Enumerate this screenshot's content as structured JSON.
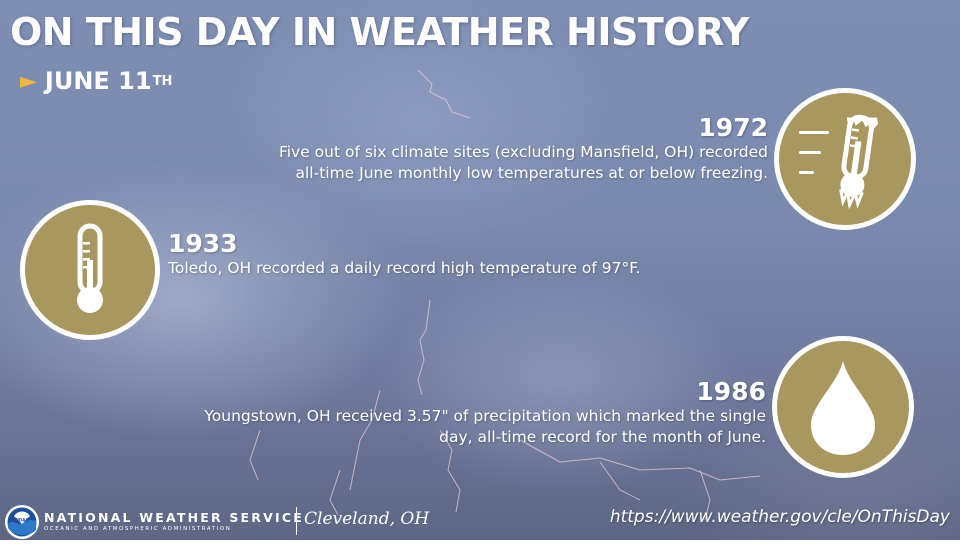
{
  "header": {
    "title": "ON THIS DAY IN WEATHER HISTORY",
    "date_main": "JUNE 11",
    "date_suffix": "TH"
  },
  "events": [
    {
      "year": "1972",
      "lines": [
        "Five out of six climate sites (excluding Mansfield, OH) recorded",
        "all-time June monthly low temperatures at or below freezing."
      ],
      "icon": "cold-thermometer-icon"
    },
    {
      "year": "1933",
      "lines": [
        "Toledo, OH recorded a daily record high temperature of 97°F."
      ],
      "icon": "thermometer-icon"
    },
    {
      "year": "1986",
      "lines": [
        "Youngstown, OH received 3.57\" of precipitation which marked the single",
        "day, all-time record for the month of June."
      ],
      "icon": "raindrop-icon"
    }
  ],
  "footer": {
    "agency": "NATIONAL WEATHER SERVICE",
    "agency_sub": "OCEANIC AND ATMOSPHERIC ADMINISTRATION",
    "logo_text": "NOAA",
    "office": "Cleveland, OH",
    "url": "https://www.weather.gov/cle/OnThisDay"
  },
  "colors": {
    "icon_circle": "#a8975f",
    "arrow": "#f2b63c",
    "text": "#ffffff"
  }
}
